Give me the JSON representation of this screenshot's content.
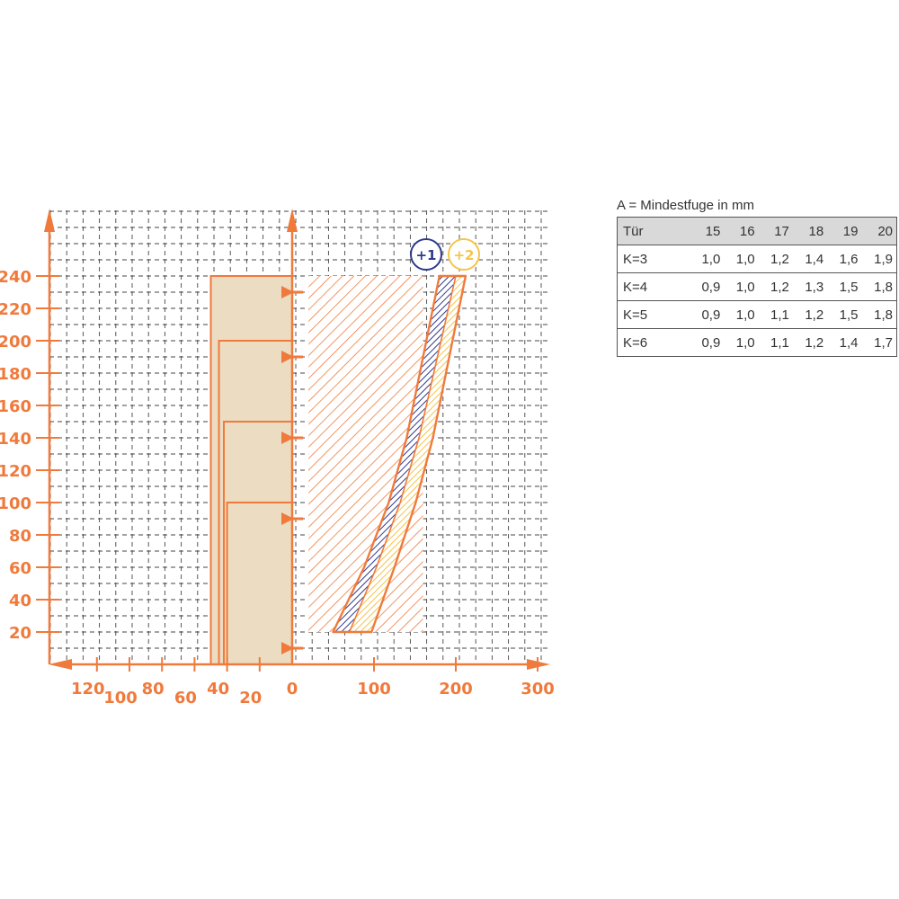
{
  "chart_data": {
    "type": "area",
    "colors": {
      "axis": "#f07a3c",
      "grid": "#444444",
      "frame_fill": "#ecdcc2",
      "blue_band": "#2e3a8c",
      "yellow_band": "#f5c44a"
    },
    "left_axis": {
      "ticks": [
        120,
        100,
        80,
        60,
        40,
        20,
        0
      ],
      "labels": [
        "120",
        "100",
        "80",
        "60",
        "40",
        "20",
        "0"
      ]
    },
    "right_axis": {
      "ticks": [
        100,
        200,
        300
      ],
      "labels": [
        "100",
        "200",
        "300"
      ]
    },
    "y_axis": {
      "ticks": [
        20,
        40,
        60,
        80,
        100,
        120,
        140,
        160,
        180,
        200,
        220,
        240
      ],
      "labels": [
        "20",
        "40",
        "60",
        "80",
        "100",
        "120",
        "140",
        "160",
        "180",
        "200",
        "220",
        "240"
      ],
      "ylim": [
        0,
        260
      ]
    },
    "frame": {
      "outer_x": 50,
      "steps": [
        {
          "x": 50,
          "y_top": 240
        },
        {
          "x": 45,
          "y_top": 200
        },
        {
          "x": 42,
          "y_top": 150
        },
        {
          "x": 40,
          "y_top": 100
        }
      ]
    },
    "markers_y": [
      10,
      90,
      140,
      190,
      230
    ],
    "hatched_region": {
      "x": [
        20,
        160
      ],
      "y": [
        20,
        240
      ]
    },
    "series": [
      {
        "name": "+1",
        "left": [
          [
            50,
            20
          ],
          [
            88,
            60
          ],
          [
            118,
            100
          ],
          [
            140,
            140
          ],
          [
            180,
            240
          ]
        ],
        "right": [
          [
            70,
            20
          ],
          [
            103,
            60
          ],
          [
            132,
            100
          ],
          [
            155,
            140
          ],
          [
            200,
            240
          ]
        ]
      },
      {
        "name": "+2",
        "left": [
          [
            70,
            20
          ],
          [
            103,
            60
          ],
          [
            132,
            100
          ],
          [
            155,
            140
          ],
          [
            200,
            240
          ]
        ],
        "right": [
          [
            97,
            20
          ],
          [
            125,
            60
          ],
          [
            151,
            100
          ],
          [
            172,
            140
          ],
          [
            212,
            240
          ]
        ]
      }
    ]
  },
  "table": {
    "caption": "A = Mindestfuge in mm",
    "header": [
      "Tür",
      "15",
      "16",
      "17",
      "18",
      "19",
      "20"
    ],
    "rows": [
      [
        "K=3",
        "1,0",
        "1,0",
        "1,2",
        "1,4",
        "1,6",
        "1,9"
      ],
      [
        "K=4",
        "0,9",
        "1,0",
        "1,2",
        "1,3",
        "1,5",
        "1,8"
      ],
      [
        "K=5",
        "0,9",
        "1,0",
        "1,1",
        "1,2",
        "1,5",
        "1,8"
      ],
      [
        "K=6",
        "0,9",
        "1,0",
        "1,1",
        "1,2",
        "1,4",
        "1,7"
      ]
    ]
  }
}
